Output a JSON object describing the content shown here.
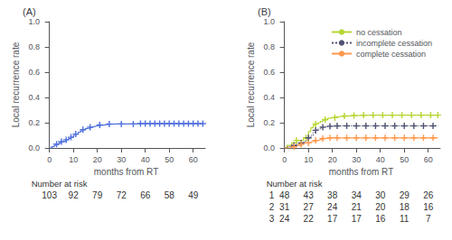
{
  "chart_data": [
    {
      "type": "step",
      "title": "(A)",
      "x_label": "months from RT",
      "y_label": "Local recurrence rate",
      "xlim": [
        -1,
        65
      ],
      "ylim": [
        0,
        1
      ],
      "xticks": [
        0,
        10,
        20,
        30,
        40,
        50,
        60
      ],
      "yticks": [
        {
          "value": 0,
          "label": "0.0"
        },
        0.2,
        0.4,
        0.6,
        0.8,
        {
          "value": 1,
          "label": "1.0"
        }
      ],
      "grid": false,
      "series": [
        {
          "x": [
            0,
            1,
            2,
            3,
            4,
            5,
            6,
            7,
            8,
            9,
            10,
            11,
            12,
            13,
            14,
            15,
            16,
            17,
            18,
            19,
            20,
            22,
            24,
            26,
            28,
            30,
            32,
            34,
            36,
            38,
            40,
            42,
            44,
            46,
            48,
            50,
            52,
            54,
            56,
            58,
            60,
            62,
            64
          ],
          "values": [
            0,
            0.01,
            0.02,
            0.03,
            0.04,
            0.05,
            0.055,
            0.065,
            0.075,
            0.085,
            0.1,
            0.11,
            0.125,
            0.135,
            0.145,
            0.155,
            0.16,
            0.165,
            0.17,
            0.175,
            0.18,
            0.185,
            0.188,
            0.19,
            0.19,
            0.19,
            0.19,
            0.19,
            0.192,
            0.193,
            0.193,
            0.193,
            0.193,
            0.193,
            0.193,
            0.193,
            0.193,
            0.193,
            0.193,
            0.193,
            0.193,
            0.193,
            0.193
          ],
          "line_style": "solid",
          "marker": "plus",
          "censor_x": [
            3,
            5,
            7,
            9,
            11,
            14,
            17,
            21,
            25,
            30,
            35,
            38,
            40,
            42,
            44,
            46,
            48,
            50,
            52,
            54,
            56,
            58,
            60,
            62,
            64
          ],
          "censor_y": [
            0.03,
            0.05,
            0.065,
            0.085,
            0.11,
            0.145,
            0.165,
            0.183,
            0.19,
            0.19,
            0.19,
            0.193,
            0.193,
            0.193,
            0.193,
            0.193,
            0.193,
            0.193,
            0.193,
            0.193,
            0.193,
            0.193,
            0.193,
            0.193,
            0.193
          ]
        }
      ],
      "at_risk": {
        "label": "Number at risk",
        "times": [
          0,
          10,
          20,
          30,
          40,
          50,
          60
        ],
        "rows": [
          {
            "values": [
              103,
              92,
              79,
              72,
              66,
              58,
              49
            ]
          }
        ]
      }
    },
    {
      "type": "step",
      "title": "(B)",
      "x_label": "months from RT",
      "y_label": "Local recurrence rate",
      "xlim": [
        -1,
        65
      ],
      "ylim": [
        0,
        1
      ],
      "xticks": [
        0,
        10,
        20,
        30,
        40,
        50,
        60
      ],
      "yticks": [
        {
          "value": 0,
          "label": "0.0"
        },
        0.2,
        0.4,
        0.6,
        0.8,
        {
          "value": 1,
          "label": "1.0"
        }
      ],
      "grid": false,
      "legend": "upper right",
      "series": [
        {
          "name": "no cessation",
          "x": [
            0,
            1,
            2,
            3,
            4,
            5,
            6,
            7,
            8,
            9,
            10,
            11,
            12,
            13,
            14,
            15,
            16,
            17,
            18,
            19,
            20,
            22,
            24,
            26,
            28,
            30,
            32,
            34,
            36,
            38,
            40,
            42,
            44,
            46,
            48,
            50,
            52,
            54,
            56,
            58,
            60,
            62,
            64
          ],
          "values": [
            0,
            0.02,
            0.02,
            0.04,
            0.04,
            0.06,
            0.06,
            0.06,
            0.08,
            0.08,
            0.13,
            0.16,
            0.18,
            0.19,
            0.2,
            0.21,
            0.22,
            0.225,
            0.235,
            0.24,
            0.245,
            0.25,
            0.252,
            0.254,
            0.256,
            0.258,
            0.258,
            0.26,
            0.26,
            0.26,
            0.26,
            0.26,
            0.26,
            0.26,
            0.26,
            0.26,
            0.26,
            0.26,
            0.26,
            0.26,
            0.26,
            0.26,
            0.26
          ],
          "line_style": "solid",
          "marker": "plus",
          "censor_x": [
            5,
            9,
            13,
            17,
            21,
            25,
            29,
            33,
            37,
            41,
            45,
            49,
            53,
            57,
            61,
            64
          ],
          "censor_y": [
            0.06,
            0.08,
            0.19,
            0.225,
            0.24,
            0.254,
            0.258,
            0.26,
            0.26,
            0.26,
            0.26,
            0.26,
            0.26,
            0.26,
            0.26,
            0.26
          ]
        },
        {
          "name": "incomplete cessation",
          "x": [
            0,
            1,
            2,
            3,
            4,
            5,
            6,
            7,
            8,
            9,
            10,
            11,
            12,
            13,
            14,
            15,
            16,
            17,
            18,
            19,
            20,
            22,
            24,
            26,
            28,
            30,
            32,
            34,
            36,
            38,
            40,
            42,
            44,
            46,
            48,
            50,
            52,
            54,
            56,
            58,
            60,
            62,
            64
          ],
          "values": [
            0,
            0.01,
            0.01,
            0.02,
            0.02,
            0.03,
            0.03,
            0.04,
            0.05,
            0.06,
            0.08,
            0.1,
            0.12,
            0.14,
            0.15,
            0.16,
            0.165,
            0.168,
            0.17,
            0.172,
            0.174,
            0.175,
            0.175,
            0.175,
            0.175,
            0.175,
            0.175,
            0.175,
            0.175,
            0.175,
            0.175,
            0.175,
            0.175,
            0.175,
            0.175,
            0.175,
            0.175,
            0.175,
            0.175,
            0.175,
            0.175,
            0.175,
            0.175
          ],
          "line_style": "dotted",
          "marker": "plus",
          "censor_x": [
            4,
            7,
            10,
            13,
            16,
            19,
            22,
            26,
            30,
            34,
            38,
            42,
            46,
            50,
            54,
            58,
            62
          ],
          "censor_y": [
            0.02,
            0.04,
            0.08,
            0.14,
            0.165,
            0.172,
            0.175,
            0.175,
            0.175,
            0.175,
            0.175,
            0.175,
            0.175,
            0.175,
            0.175,
            0.175,
            0.175
          ]
        },
        {
          "name": "complete cessation",
          "x": [
            0,
            1,
            2,
            3,
            4,
            5,
            6,
            7,
            8,
            9,
            10,
            11,
            12,
            13,
            14,
            15,
            16,
            17,
            18,
            19,
            20,
            22,
            24,
            26,
            28,
            30,
            32,
            34,
            36,
            38,
            40,
            42,
            44,
            46,
            48,
            50,
            52,
            54,
            56,
            58,
            60,
            62,
            64
          ],
          "values": [
            0,
            0.0,
            0.0,
            0.01,
            0.01,
            0.02,
            0.02,
            0.03,
            0.04,
            0.04,
            0.04,
            0.05,
            0.055,
            0.06,
            0.065,
            0.07,
            0.075,
            0.077,
            0.079,
            0.08,
            0.08,
            0.08,
            0.08,
            0.08,
            0.08,
            0.08,
            0.08,
            0.08,
            0.08,
            0.08,
            0.08,
            0.08,
            0.08,
            0.08,
            0.08,
            0.08,
            0.08,
            0.08,
            0.08,
            0.08,
            0.08,
            0.08,
            0.08
          ],
          "line_style": "solid",
          "marker": "plus",
          "censor_x": [
            4,
            7,
            10,
            13,
            16,
            19,
            22,
            26,
            30,
            34,
            38,
            42,
            46,
            50,
            54,
            58,
            62
          ],
          "censor_y": [
            0.01,
            0.03,
            0.04,
            0.06,
            0.075,
            0.08,
            0.08,
            0.08,
            0.08,
            0.08,
            0.08,
            0.08,
            0.08,
            0.08,
            0.08,
            0.08,
            0.08
          ]
        }
      ],
      "at_risk": {
        "label": "Number at risk",
        "times": [
          0,
          10,
          20,
          30,
          40,
          50,
          60
        ],
        "rows": [
          {
            "group": "1",
            "values": [
              48,
              43,
              38,
              34,
              30,
              29,
              26
            ]
          },
          {
            "group": "2",
            "values": [
              31,
              27,
              24,
              21,
              20,
              18,
              16
            ]
          },
          {
            "group": "3",
            "values": [
              24,
              22,
              17,
              17,
              16,
              11,
              7
            ]
          }
        ]
      }
    }
  ]
}
